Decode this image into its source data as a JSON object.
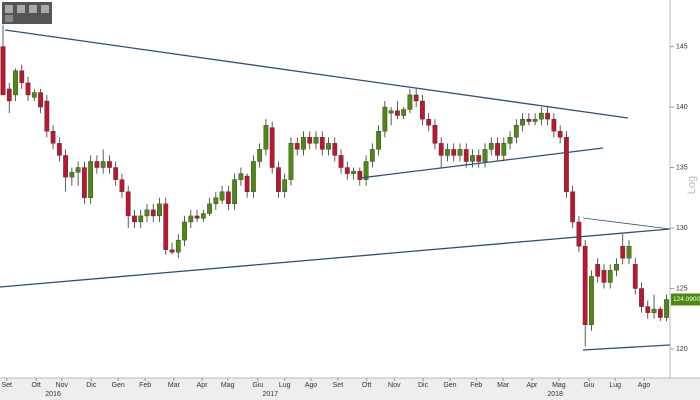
{
  "chart_data": {
    "type": "candlestick",
    "y_axis_label": "Log",
    "up_color": "#4f8a10",
    "down_color": "#c0152f",
    "xlim": [
      -0.48,
      106.55
    ],
    "ylim": [
      117.6,
      148.85
    ],
    "yticks": [
      120,
      125,
      130,
      135,
      140,
      145
    ],
    "xticks": [
      {
        "value": 0.6,
        "label": "Set"
      },
      {
        "value": 5.3,
        "label": "Ott"
      },
      {
        "value": 9.4,
        "label": "Nov"
      },
      {
        "value": 14.1,
        "label": "Dic"
      },
      {
        "value": 18.4,
        "label": "Gen"
      },
      {
        "value": 22.7,
        "label": "Feb"
      },
      {
        "value": 27.3,
        "label": "Mar"
      },
      {
        "value": 31.8,
        "label": "Apr"
      },
      {
        "value": 35.9,
        "label": "Mag"
      },
      {
        "value": 40.7,
        "label": "Giu"
      },
      {
        "value": 45,
        "label": "Lug"
      },
      {
        "value": 49.2,
        "label": "Ago"
      },
      {
        "value": 53.5,
        "label": "Set"
      },
      {
        "value": 58.1,
        "label": "Ott"
      },
      {
        "value": 62.5,
        "label": "Nov"
      },
      {
        "value": 67.1,
        "label": "Dic"
      },
      {
        "value": 71.4,
        "label": "Gen"
      },
      {
        "value": 75.6,
        "label": "Feb"
      },
      {
        "value": 79.9,
        "label": "Mar"
      },
      {
        "value": 84.5,
        "label": "Apr"
      },
      {
        "value": 88.8,
        "label": "Mag"
      },
      {
        "value": 93.6,
        "label": "Giu"
      },
      {
        "value": 97.8,
        "label": "Lug"
      },
      {
        "value": 102.4,
        "label": "Ago"
      }
    ],
    "year_ticks": [
      {
        "value": 8,
        "label": "2016"
      },
      {
        "value": 42.7,
        "label": "2017"
      },
      {
        "value": 88.2,
        "label": "2018"
      }
    ],
    "last_price": {
      "value": 124.09,
      "label": "124.0900"
    },
    "candles": [
      [
        145,
        146.8,
        141,
        141
      ],
      [
        141.5,
        142,
        139.5,
        140.5
      ],
      [
        141,
        143.2,
        140.5,
        143
      ],
      [
        143,
        143.5,
        141.5,
        142
      ],
      [
        142,
        142.5,
        140.5,
        141
      ],
      [
        140.8,
        141.5,
        140.5,
        141.2
      ],
      [
        141.2,
        141.5,
        139.5,
        140
      ],
      [
        140.5,
        141,
        137.5,
        138
      ],
      [
        138,
        138.5,
        136.5,
        137
      ],
      [
        137,
        137.5,
        135.5,
        136
      ],
      [
        136,
        136.5,
        133,
        134.2
      ],
      [
        134.2,
        135,
        133.5,
        134.6
      ],
      [
        134.6,
        135.5,
        133.5,
        135
      ],
      [
        135,
        135.5,
        132,
        132.5
      ],
      [
        132.5,
        136,
        132,
        135.5
      ],
      [
        135.5,
        136,
        134.5,
        135
      ],
      [
        135,
        136.5,
        134.5,
        135.5
      ],
      [
        135.5,
        136,
        134.5,
        135
      ],
      [
        135,
        135.5,
        133.5,
        134
      ],
      [
        134,
        134.5,
        132.5,
        133
      ],
      [
        133,
        133.5,
        130,
        131
      ],
      [
        131,
        131.5,
        130,
        130.5
      ],
      [
        130.5,
        131.5,
        130,
        131
      ],
      [
        131,
        132,
        130.5,
        131.5
      ],
      [
        131.5,
        132,
        130.5,
        131
      ],
      [
        131,
        132.5,
        130.5,
        132
      ],
      [
        132,
        132.5,
        127.8,
        128.2
      ],
      [
        128.2,
        128.8,
        127.8,
        128
      ],
      [
        128,
        129.5,
        127.5,
        129
      ],
      [
        129,
        131,
        128.5,
        130.5
      ],
      [
        130.5,
        131.5,
        130,
        131
      ],
      [
        131,
        131.5,
        130.5,
        130.8
      ],
      [
        130.8,
        131.5,
        130.5,
        131.2
      ],
      [
        131.2,
        132.5,
        131,
        132
      ],
      [
        132,
        133,
        131.5,
        132.5
      ],
      [
        132.3,
        133.5,
        132,
        133
      ],
      [
        133,
        133.5,
        131.5,
        132
      ],
      [
        132,
        134.5,
        131.5,
        134
      ],
      [
        134,
        135,
        133.5,
        134.5
      ],
      [
        134.3,
        134.5,
        132.5,
        133
      ],
      [
        133,
        136,
        132.5,
        135.5
      ],
      [
        135.5,
        137,
        135,
        136.5
      ],
      [
        136.5,
        139,
        136,
        138.5
      ],
      [
        138.3,
        138.8,
        134.5,
        135
      ],
      [
        135,
        135.5,
        132.5,
        133
      ],
      [
        133,
        134.5,
        132.5,
        134
      ],
      [
        134,
        137.5,
        133.5,
        137
      ],
      [
        137,
        137.5,
        136,
        136.5
      ],
      [
        136.5,
        138,
        136,
        137.5
      ],
      [
        137.5,
        138,
        136.5,
        137
      ],
      [
        137,
        138,
        136.5,
        137.5
      ],
      [
        137.5,
        138,
        136,
        136.5
      ],
      [
        136.5,
        137.5,
        136,
        137
      ],
      [
        137,
        137.5,
        135.5,
        136
      ],
      [
        136,
        136.5,
        134.5,
        135
      ],
      [
        135,
        135.5,
        134,
        134.5
      ],
      [
        134.5,
        135,
        134,
        134.7
      ],
      [
        134.7,
        135,
        133.5,
        134
      ],
      [
        134,
        136,
        133.5,
        135.5
      ],
      [
        135.5,
        137,
        135,
        136.5
      ],
      [
        136.5,
        138.5,
        136,
        138
      ],
      [
        138,
        140.5,
        137.5,
        140
      ],
      [
        139.5,
        140,
        138.5,
        139.7
      ],
      [
        139.7,
        140.5,
        139,
        139.3
      ],
      [
        139.3,
        140,
        139,
        139.8
      ],
      [
        139.8,
        141.5,
        139.5,
        141
      ],
      [
        141,
        141.5,
        140,
        140.5
      ],
      [
        140.5,
        141,
        138.5,
        139
      ],
      [
        139,
        139.5,
        138,
        138.5
      ],
      [
        138.5,
        139,
        136.5,
        137
      ],
      [
        137,
        137.5,
        135,
        136
      ],
      [
        136,
        137,
        135.5,
        136.5
      ],
      [
        136.5,
        137,
        135.5,
        136
      ],
      [
        136,
        137,
        135.5,
        136.5
      ],
      [
        136.5,
        137,
        135,
        135.5
      ],
      [
        135.5,
        136.5,
        135,
        136
      ],
      [
        136,
        136.5,
        135,
        135.5
      ],
      [
        135.5,
        137,
        135,
        136.5
      ],
      [
        136.5,
        137.5,
        136,
        137
      ],
      [
        137,
        137.5,
        135.5,
        136
      ],
      [
        136,
        137.5,
        135.5,
        137
      ],
      [
        137,
        138,
        136.5,
        137.5
      ],
      [
        137.5,
        139,
        137,
        138.5
      ],
      [
        138.5,
        139.5,
        138,
        139
      ],
      [
        139,
        139.5,
        138.5,
        138.8
      ],
      [
        138.8,
        139.5,
        138.5,
        139
      ],
      [
        139,
        140,
        138.5,
        139.5
      ],
      [
        139.5,
        140,
        138.5,
        139
      ],
      [
        139,
        139.5,
        137.5,
        138
      ],
      [
        138,
        138.5,
        137,
        137.5
      ],
      [
        137.5,
        138,
        132.5,
        133
      ],
      [
        133,
        133.5,
        130,
        130.5
      ],
      [
        130.5,
        131,
        128,
        128.5
      ],
      [
        128.5,
        129,
        120.2,
        122
      ],
      [
        122,
        126.5,
        121.5,
        126
      ],
      [
        127,
        127.5,
        125.5,
        126
      ],
      [
        126.5,
        127,
        125,
        125.5
      ],
      [
        125.5,
        127,
        125,
        126.5
      ],
      [
        126.5,
        127.5,
        126,
        127
      ],
      [
        128.5,
        129.5,
        127,
        127.5
      ],
      [
        127.5,
        129,
        127,
        128.5
      ],
      [
        127,
        127.5,
        124.5,
        125
      ],
      [
        125,
        125.5,
        123,
        123.5
      ],
      [
        123.5,
        124,
        122.5,
        123
      ],
      [
        123,
        124.5,
        122.5,
        123.3
      ],
      [
        123.3,
        123.5,
        122.3,
        122.6
      ],
      [
        122.6,
        124.5,
        122.3,
        124.09
      ]
    ]
  }
}
